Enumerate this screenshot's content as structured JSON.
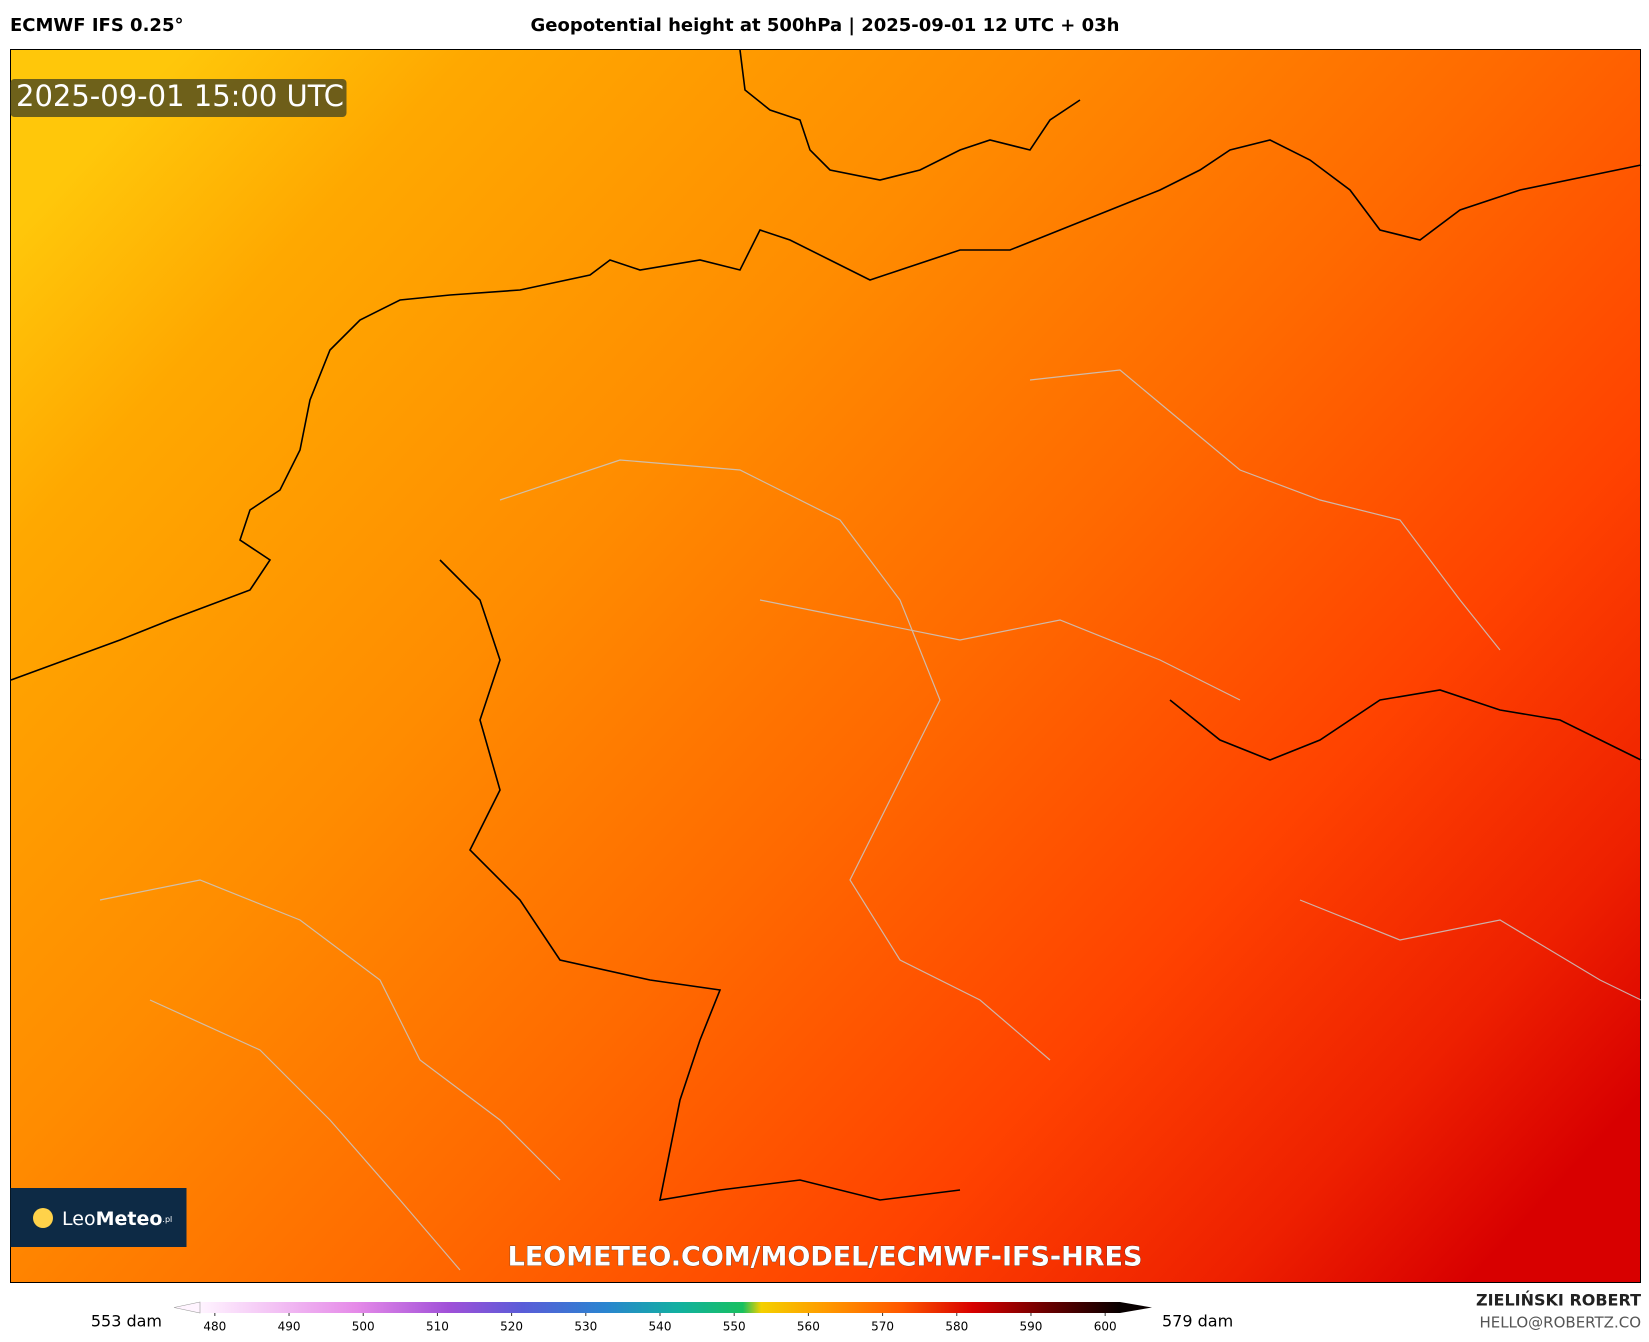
{
  "header": {
    "model": "ECMWF IFS 0.25°",
    "title": "Geopotential height at 500hPa | 2025-09-01 12 UTC + 03h"
  },
  "map": {
    "valid_time": "2025-09-01 15:00 UTC",
    "watermark": "LEOMETEO.COM/MODEL/ECMWF-IFS-HRES"
  },
  "logo": {
    "light": "Leo",
    "bold": "Meteo",
    "suffix": ".pl"
  },
  "colorbar": {
    "min_label": "553 dam",
    "max_label": "579 dam",
    "lim": [
      478,
      602
    ],
    "ticks": [
      480,
      490,
      500,
      510,
      520,
      530,
      540,
      550,
      560,
      570,
      580,
      590,
      600
    ]
  },
  "footer": {
    "author": "ZIELIŃSKI ROBERT",
    "email": "HELLO@ROBERTZ.CO"
  }
}
